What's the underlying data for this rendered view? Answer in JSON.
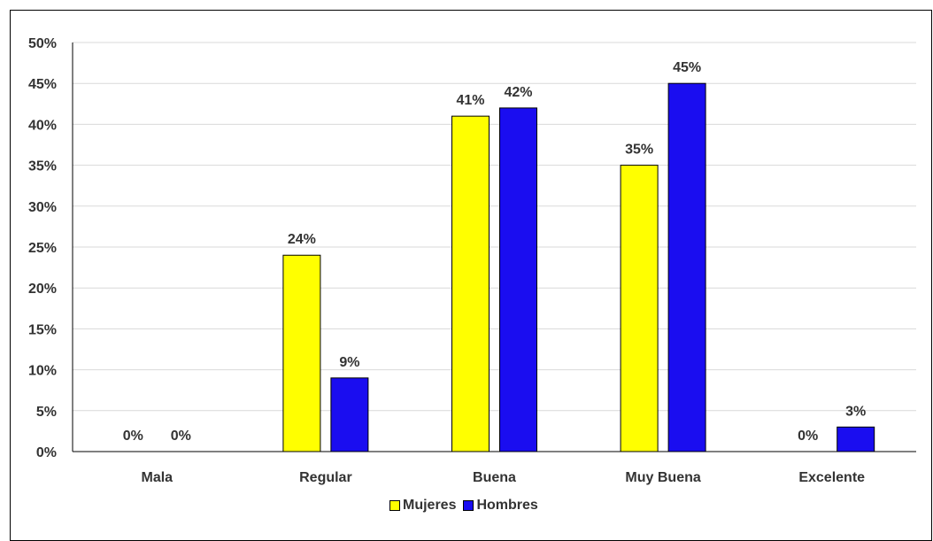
{
  "chart_data": {
    "type": "bar",
    "categories": [
      "Mala",
      "Regular",
      "Buena",
      "Muy Buena",
      "Excelente"
    ],
    "series": [
      {
        "name": "Mujeres",
        "values": [
          0,
          24,
          41,
          35,
          0
        ],
        "color": "#ffff00"
      },
      {
        "name": "Hombres",
        "values": [
          0,
          9,
          42,
          45,
          3
        ],
        "color": "#1a0df0"
      }
    ],
    "data_labels": [
      [
        "0%",
        "24%",
        "41%",
        "35%",
        "0%"
      ],
      [
        "0%",
        "9%",
        "42%",
        "45%",
        "3%"
      ]
    ],
    "y_ticks": [
      "0%",
      "5%",
      "10%",
      "15%",
      "20%",
      "25%",
      "30%",
      "35%",
      "40%",
      "45%",
      "50%"
    ],
    "ylim": [
      0,
      50
    ],
    "y_unit": "%",
    "grid": true,
    "legend_position": "bottom",
    "title": "",
    "xlabel": "",
    "ylabel": ""
  }
}
